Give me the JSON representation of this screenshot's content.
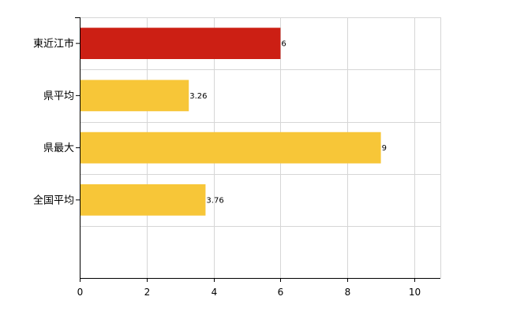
{
  "chart_data": {
    "type": "bar",
    "orientation": "horizontal",
    "categories": [
      "東近江市",
      "県平均",
      "県最大",
      "全国平均"
    ],
    "values": [
      6,
      3.26,
      9,
      3.76
    ],
    "value_labels": [
      "6",
      "3.26",
      "9",
      "3.76"
    ],
    "colors": [
      "#cc1f14",
      "#f7c638",
      "#f7c638",
      "#f7c638"
    ],
    "xlim": [
      0,
      10.8
    ],
    "x_ticks": [
      0,
      2,
      4,
      6,
      8,
      10
    ],
    "grid": true,
    "title": "",
    "xlabel": "",
    "ylabel": ""
  }
}
